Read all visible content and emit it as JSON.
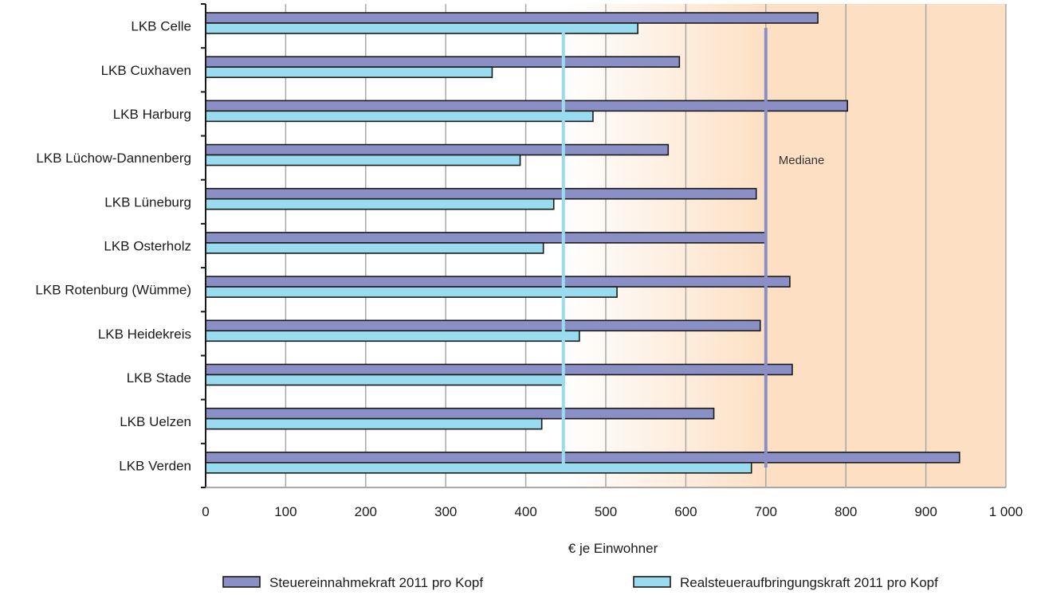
{
  "chart_data": {
    "type": "bar",
    "orientation": "horizontal",
    "categories": [
      "LKB Celle",
      "LKB Cuxhaven",
      "LKB Harburg",
      "LKB Lüchow-Dannenberg",
      "LKB Lüneburg",
      "LKB Osterholz",
      "LKB Rotenburg (Wümme)",
      "LKB Heidekreis",
      "LKB Stade",
      "LKB Uelzen",
      "LKB Verden"
    ],
    "series": [
      {
        "name": "Steuereinnahmekraft 2011 pro Kopf",
        "color": "#8a8fc6",
        "values": [
          765,
          592,
          802,
          578,
          688,
          700,
          730,
          693,
          733,
          635,
          942
        ]
      },
      {
        "name": "Realsteueraufbringungskraft 2011 pro  Kopf",
        "color": "#99dcf0",
        "values": [
          540,
          358,
          484,
          393,
          435,
          422,
          514,
          467,
          448,
          420,
          682
        ]
      }
    ],
    "xlabel": "€ je Einwohner",
    "xlim": [
      0,
      1000
    ],
    "xticks": [
      0,
      100,
      200,
      300,
      400,
      500,
      600,
      700,
      800,
      900,
      1000
    ],
    "xtick_labels": [
      "0",
      "100",
      "200",
      "300",
      "400",
      "500",
      "600",
      "700",
      "800",
      "900",
      "1 000"
    ],
    "grid": "vertical",
    "legend": "bottom",
    "reference_lines": [
      {
        "value": 447,
        "color": "#99dcf0"
      },
      {
        "value": 700,
        "color": "#8a8fc6",
        "label": "Mediane"
      }
    ],
    "background_gradient": {
      "from": 450,
      "to": 700,
      "color": "#fde0c4"
    }
  }
}
